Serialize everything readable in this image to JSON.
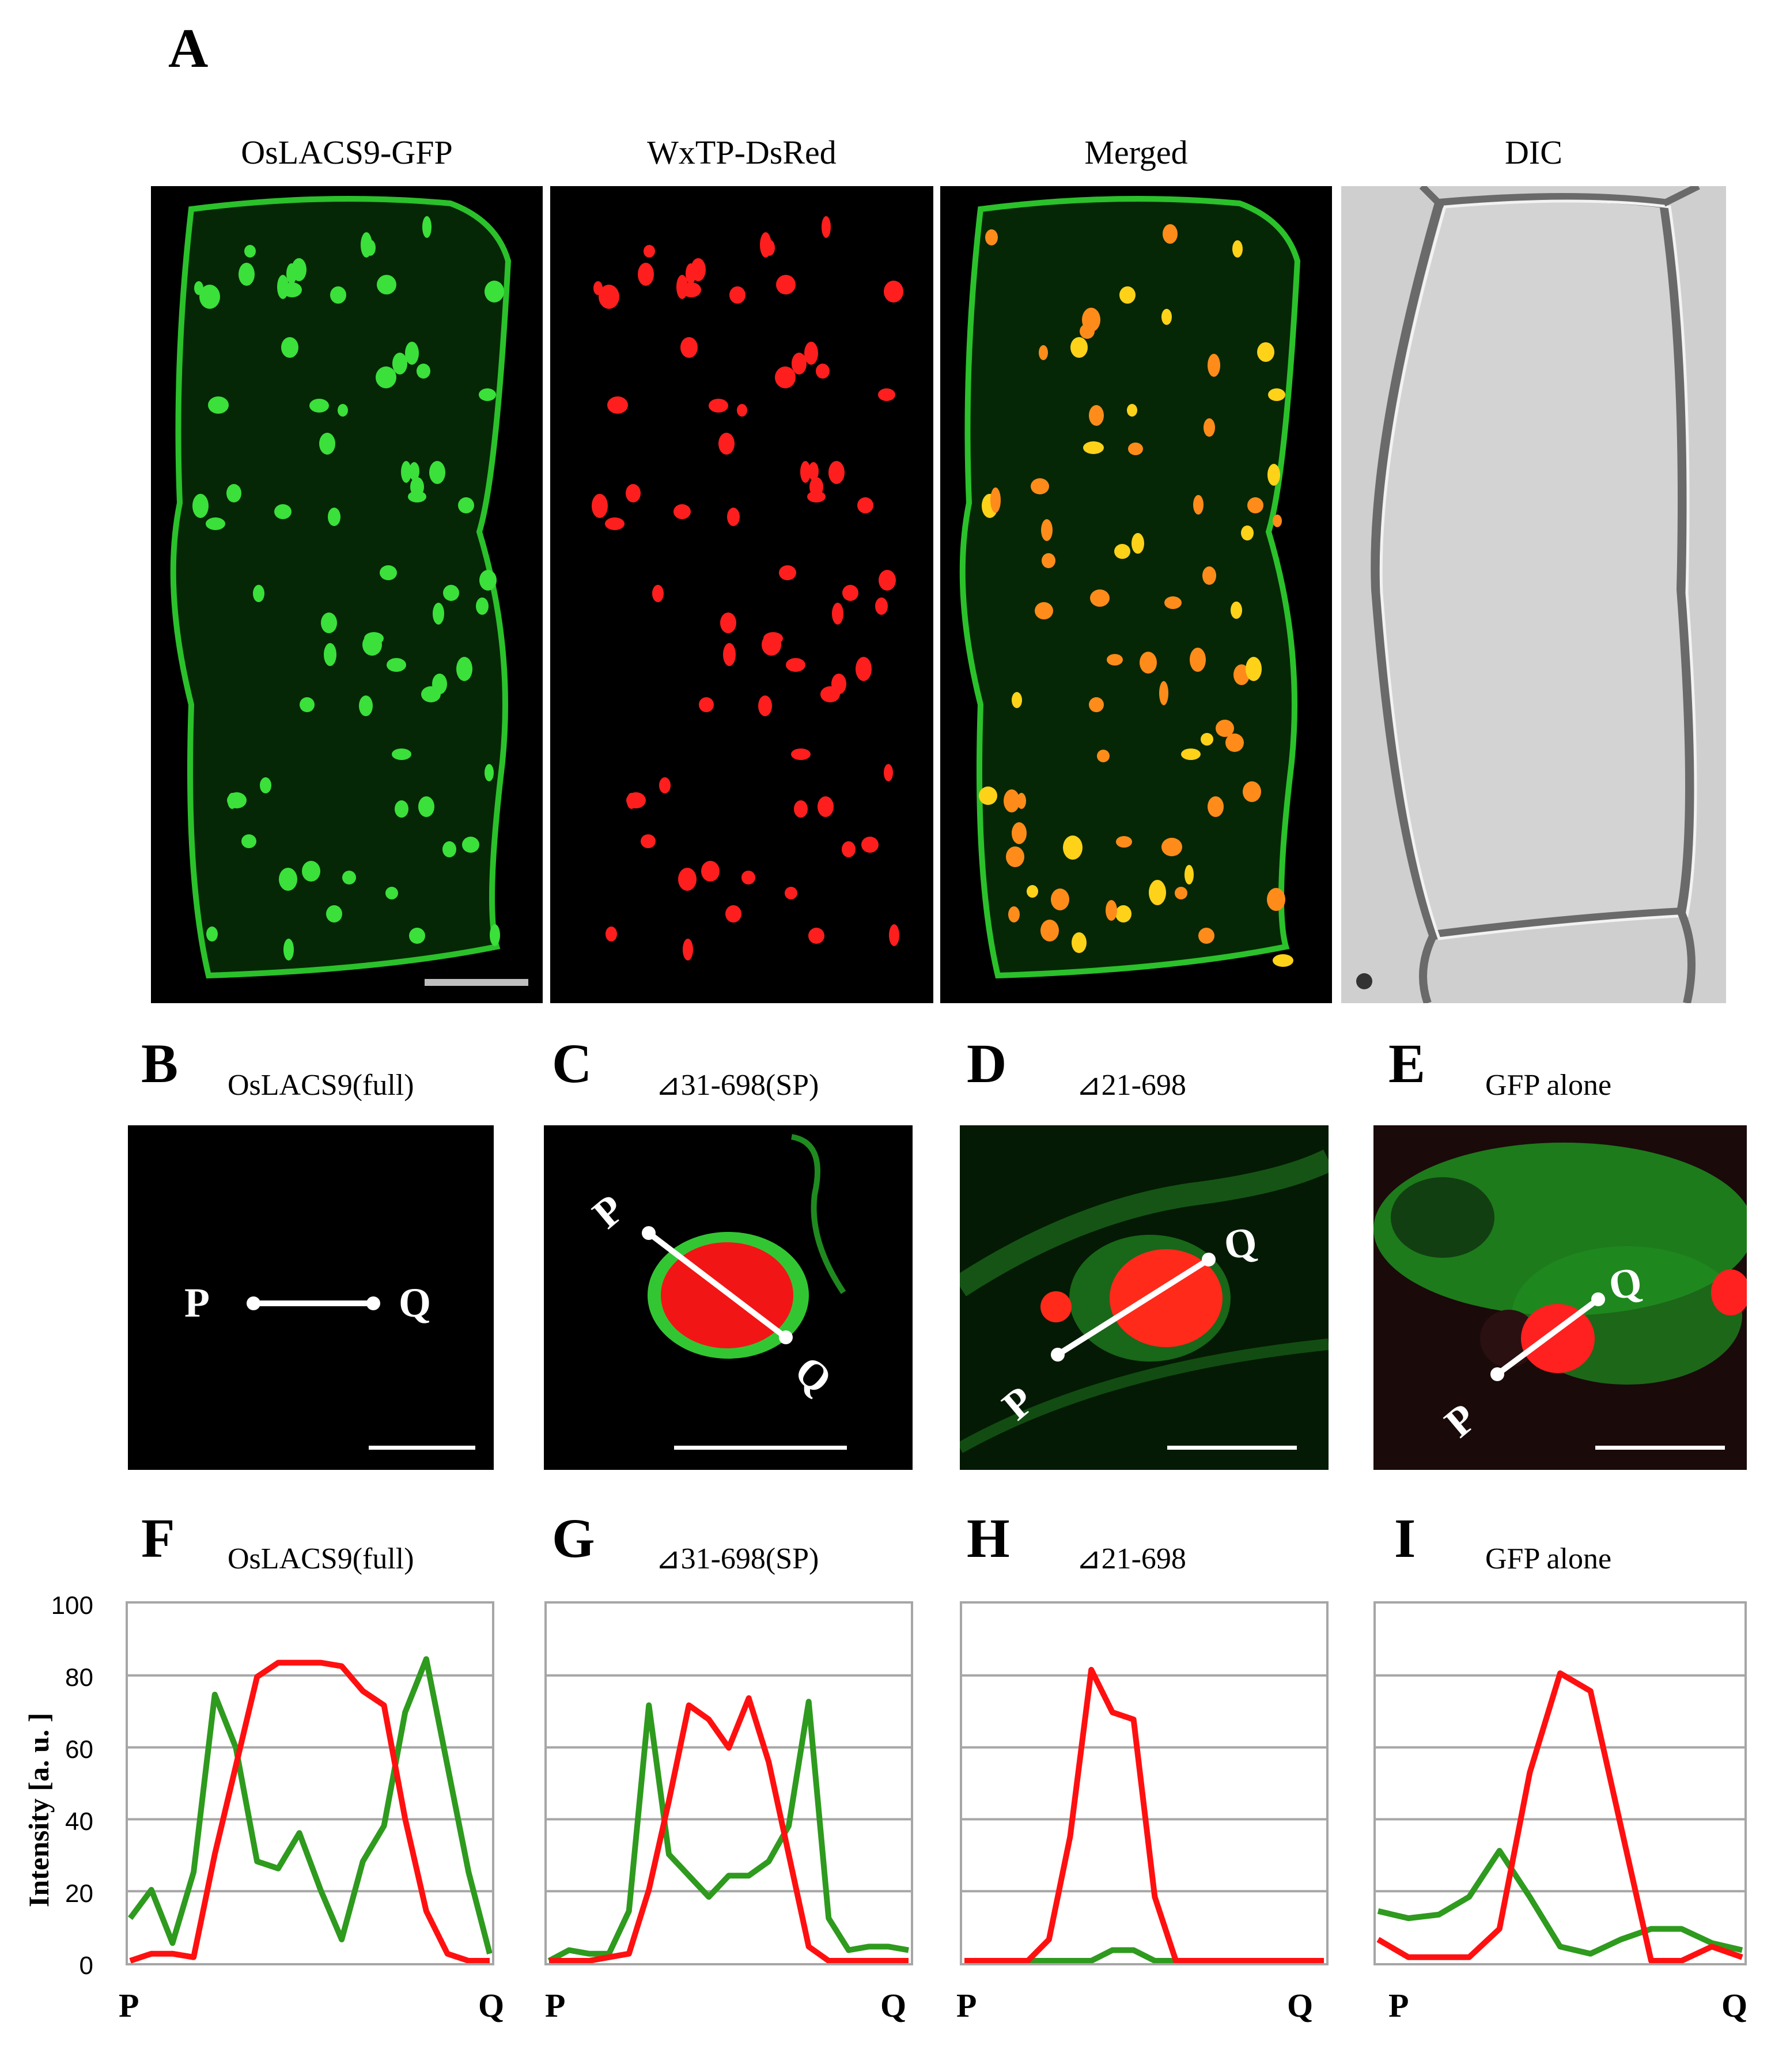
{
  "panel_a": {
    "letter": "A",
    "titles": [
      "OsLACS9-GFP",
      "WxTP-DsRed",
      "Merged",
      "DIC"
    ]
  },
  "zoom_panels": [
    {
      "letter": "B",
      "title": "OsLACS9(full)",
      "p_label": "P",
      "q_label": "Q"
    },
    {
      "letter": "C",
      "title": "⊿31-698(SP)",
      "p_label": "P",
      "q_label": "Q"
    },
    {
      "letter": "D",
      "title": "⊿21-698",
      "p_label": "P",
      "q_label": "Q"
    },
    {
      "letter": "E",
      "title": "GFP alone",
      "p_label": "P",
      "q_label": "Q"
    }
  ],
  "chart_panels": [
    {
      "letter": "F",
      "title": "OsLACS9(full)",
      "x_start": "P",
      "x_end": "Q"
    },
    {
      "letter": "G",
      "title": "⊿31-698(SP)",
      "x_start": "P",
      "x_end": "Q"
    },
    {
      "letter": "H",
      "title": "⊿21-698",
      "x_start": "P",
      "x_end": "Q"
    },
    {
      "letter": "I",
      "title": "GFP alone",
      "x_start": "P",
      "x_end": "Q"
    }
  ],
  "y_axis": {
    "label": "Intensity [a. u. ]",
    "ticks": [
      "100",
      "80",
      "60",
      "40",
      "20",
      "0"
    ]
  },
  "colors": {
    "gfp": "#2e9a1e",
    "dsred": "#ff1010"
  },
  "chart_data": [
    {
      "type": "line",
      "ylim": [
        0,
        100
      ],
      "grid": true,
      "series": [
        {
          "color": "green",
          "values": [
            12,
            20,
            5,
            25,
            75,
            60,
            28,
            26,
            36,
            20,
            6,
            28,
            38,
            70,
            85,
            55,
            25,
            2
          ]
        },
        {
          "color": "red",
          "values": [
            0,
            2,
            2,
            1,
            30,
            55,
            80,
            84,
            84,
            84,
            83,
            76,
            72,
            40,
            14,
            2,
            0,
            0
          ]
        }
      ]
    },
    {
      "type": "line",
      "ylim": [
        0,
        100
      ],
      "grid": true,
      "series": [
        {
          "color": "green",
          "values": [
            0,
            3,
            2,
            2,
            14,
            72,
            30,
            24,
            18,
            24,
            24,
            28,
            38,
            73,
            12,
            3,
            4,
            4,
            3
          ]
        },
        {
          "color": "red",
          "values": [
            0,
            0,
            0,
            1,
            2,
            20,
            45,
            72,
            68,
            60,
            74,
            56,
            30,
            4,
            0,
            0,
            0,
            0,
            0
          ]
        }
      ]
    },
    {
      "type": "line",
      "ylim": [
        0,
        100
      ],
      "grid": true,
      "series": [
        {
          "color": "green",
          "values": [
            0,
            0,
            0,
            0,
            0,
            0,
            0,
            3,
            3,
            0,
            0,
            0,
            0,
            0,
            0,
            0,
            0,
            0
          ]
        },
        {
          "color": "red",
          "values": [
            0,
            0,
            0,
            0,
            6,
            35,
            82,
            70,
            68,
            18,
            0,
            0,
            0,
            0,
            0,
            0,
            0,
            0
          ]
        }
      ]
    },
    {
      "type": "line",
      "ylim": [
        0,
        100
      ],
      "grid": true,
      "series": [
        {
          "color": "green",
          "values": [
            14,
            12,
            13,
            18,
            31,
            18,
            4,
            2,
            6,
            9,
            9,
            5,
            3
          ]
        },
        {
          "color": "red",
          "values": [
            6,
            1,
            1,
            1,
            9,
            53,
            81,
            76,
            38,
            0,
            0,
            4,
            1
          ]
        }
      ]
    }
  ]
}
